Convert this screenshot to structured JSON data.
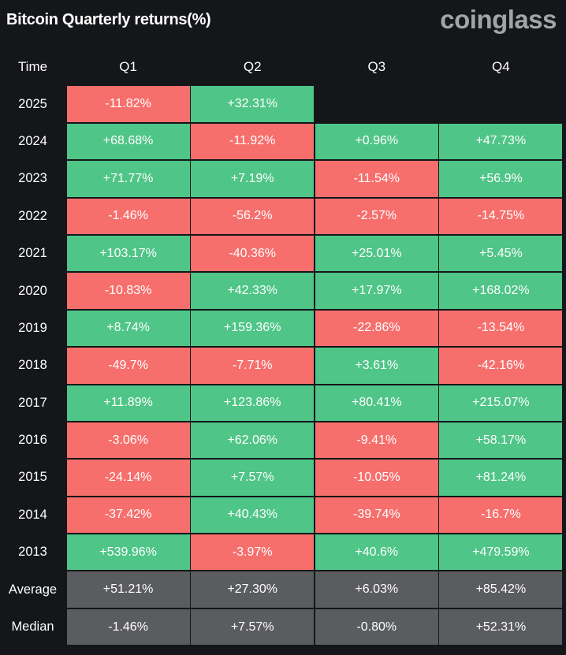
{
  "header": {
    "title": "Bitcoin Quarterly returns(%)",
    "brand": "coinglass"
  },
  "colors": {
    "positive": "#4fc587",
    "negative": "#f66f6c",
    "summary": "#5b5c60",
    "background": "#14161a"
  },
  "chart_data": {
    "type": "table",
    "title": "Bitcoin Quarterly returns(%)",
    "columns": [
      "Time",
      "Q1",
      "Q2",
      "Q3",
      "Q4"
    ],
    "rows": [
      {
        "label": "2025",
        "values": [
          "-11.82%",
          "+32.31%",
          "",
          ""
        ]
      },
      {
        "label": "2024",
        "values": [
          "+68.68%",
          "-11.92%",
          "+0.96%",
          "+47.73%"
        ]
      },
      {
        "label": "2023",
        "values": [
          "+71.77%",
          "+7.19%",
          "-11.54%",
          "+56.9%"
        ]
      },
      {
        "label": "2022",
        "values": [
          "-1.46%",
          "-56.2%",
          "-2.57%",
          "-14.75%"
        ]
      },
      {
        "label": "2021",
        "values": [
          "+103.17%",
          "-40.36%",
          "+25.01%",
          "+5.45%"
        ]
      },
      {
        "label": "2020",
        "values": [
          "-10.83%",
          "+42.33%",
          "+17.97%",
          "+168.02%"
        ]
      },
      {
        "label": "2019",
        "values": [
          "+8.74%",
          "+159.36%",
          "-22.86%",
          "-13.54%"
        ]
      },
      {
        "label": "2018",
        "values": [
          "-49.7%",
          "-7.71%",
          "+3.61%",
          "-42.16%"
        ]
      },
      {
        "label": "2017",
        "values": [
          "+11.89%",
          "+123.86%",
          "+80.41%",
          "+215.07%"
        ]
      },
      {
        "label": "2016",
        "values": [
          "-3.06%",
          "+62.06%",
          "-9.41%",
          "+58.17%"
        ]
      },
      {
        "label": "2015",
        "values": [
          "-24.14%",
          "+7.57%",
          "-10.05%",
          "+81.24%"
        ]
      },
      {
        "label": "2014",
        "values": [
          "-37.42%",
          "+40.43%",
          "-39.74%",
          "-16.7%"
        ]
      },
      {
        "label": "2013",
        "values": [
          "+539.96%",
          "-3.97%",
          "+40.6%",
          "+479.59%"
        ]
      }
    ],
    "summary": [
      {
        "label": "Average",
        "values": [
          "+51.21%",
          "+27.30%",
          "+6.03%",
          "+85.42%"
        ]
      },
      {
        "label": "Median",
        "values": [
          "-1.46%",
          "+7.57%",
          "-0.80%",
          "+52.31%"
        ]
      }
    ]
  }
}
